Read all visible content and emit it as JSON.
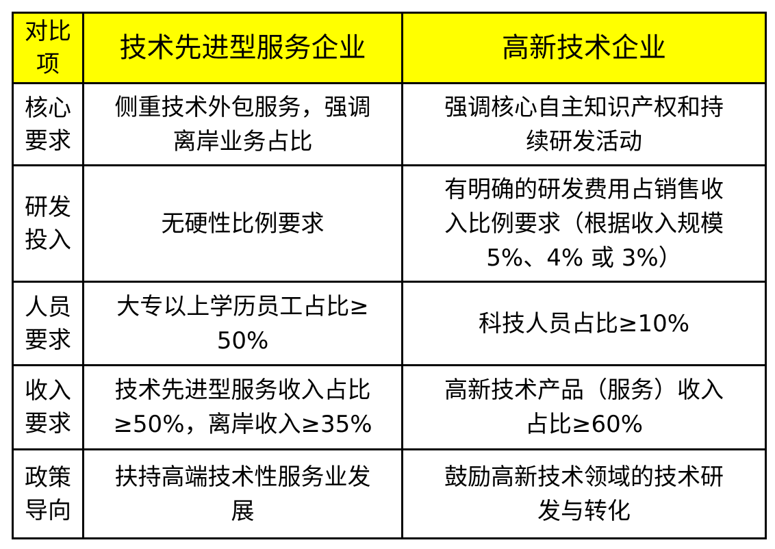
{
  "colors": {
    "header_bg": "#ffff00",
    "border": "#000000"
  },
  "header": [
    "对比\n项",
    "技术先进型服务企业",
    "高新技术企业"
  ],
  "rows": [
    {
      "label": "核心\n要求",
      "a": "侧重技术外包服务，强调\n离岸业务占比",
      "b": "强调核心自主知识产权和持\n续研发活动"
    },
    {
      "label": "研发\n投入",
      "a": "无硬性比例要求",
      "b": "有明确的研发费用占销售收\n入比例要求（根据收入规模\n5%、4% 或 3%）"
    },
    {
      "label": "人员\n要求",
      "a": "大专以上学历员工占比≥\n50%",
      "b": "科技人员占比≥10%"
    },
    {
      "label": "收入\n要求",
      "a": "技术先进型服务收入占比\n≥50%，离岸收入≥35%",
      "b": "高新技术产品（服务）收入\n占比≥60%"
    },
    {
      "label": "政策\n导向",
      "a": "扶持高端技术性服务业发\n展",
      "b": "鼓励高新技术领域的技术研\n发与转化"
    }
  ]
}
